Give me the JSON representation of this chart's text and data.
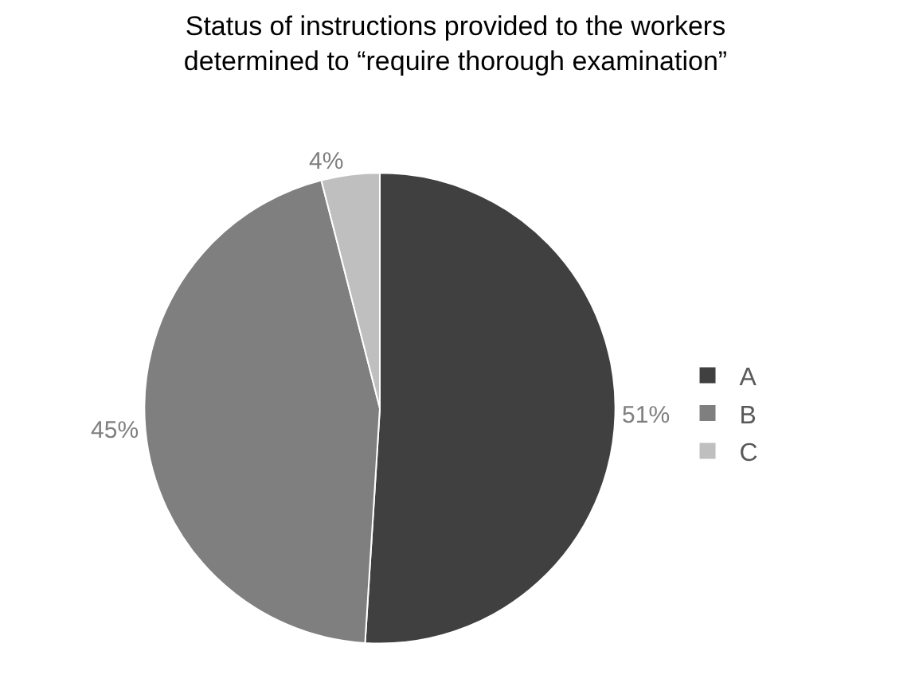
{
  "chart_data": {
    "type": "pie",
    "title": "Status of instructions provided to the workers\ndetermined to “require thorough examination”",
    "categories": [
      "A",
      "B",
      "C"
    ],
    "values": [
      51,
      45,
      4
    ],
    "value_labels": [
      "51%",
      "45%",
      "4%"
    ],
    "colors": [
      "#404040",
      "#7f7f7f",
      "#bfbfbf"
    ],
    "legend": "right"
  }
}
